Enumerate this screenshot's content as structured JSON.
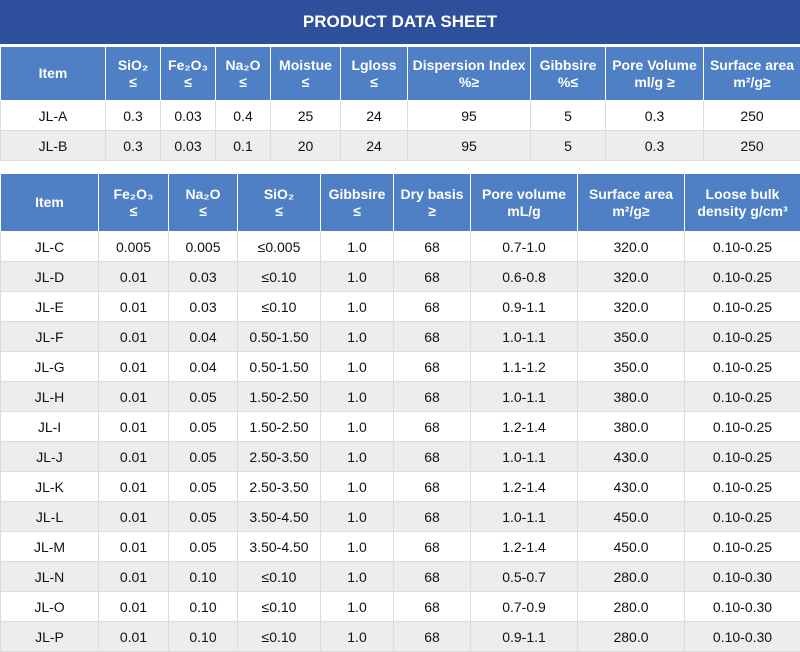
{
  "title": "PRODUCT DATA SHEET",
  "tables": [
    {
      "header": [
        [
          "Item"
        ],
        [
          "SiO₂",
          "≤"
        ],
        [
          "Fe₂O₃",
          "≤"
        ],
        [
          "Na₂O",
          "≤"
        ],
        [
          "Moistue",
          "≤"
        ],
        [
          "Lgloss",
          "≤"
        ],
        [
          "Dispersion Index",
          "%≥"
        ],
        [
          "Gibbsire",
          "%≤"
        ],
        [
          "Pore Volume",
          "ml/g ≥"
        ],
        [
          "Surface area",
          "m²/g≥"
        ]
      ],
      "rows": [
        [
          "JL-A",
          "0.3",
          "0.03",
          "0.4",
          "25",
          "24",
          "95",
          "5",
          "0.3",
          "250"
        ],
        [
          "JL-B",
          "0.3",
          "0.03",
          "0.1",
          "20",
          "24",
          "95",
          "5",
          "0.3",
          "250"
        ]
      ]
    },
    {
      "header": [
        [
          "Item"
        ],
        [
          "Fe₂O₃",
          "≤"
        ],
        [
          "Na₂O",
          "≤"
        ],
        [
          "SiO₂",
          "≤"
        ],
        [
          "Gibbsire",
          "≤"
        ],
        [
          "Dry basis",
          "≥"
        ],
        [
          "Pore volume",
          "mL/g"
        ],
        [
          "Surface area",
          "m²/g≥"
        ],
        [
          "Loose bulk",
          "density g/cm³"
        ]
      ],
      "rows": [
        [
          "JL-C",
          "0.005",
          "0.005",
          "≤0.005",
          "1.0",
          "68",
          "0.7-1.0",
          "320.0",
          "0.10-0.25"
        ],
        [
          "JL-D",
          "0.01",
          "0.03",
          "≤0.10",
          "1.0",
          "68",
          "0.6-0.8",
          "320.0",
          "0.10-0.25"
        ],
        [
          "JL-E",
          "0.01",
          "0.03",
          "≤0.10",
          "1.0",
          "68",
          "0.9-1.1",
          "320.0",
          "0.10-0.25"
        ],
        [
          "JL-F",
          "0.01",
          "0.04",
          "0.50-1.50",
          "1.0",
          "68",
          "1.0-1.1",
          "350.0",
          "0.10-0.25"
        ],
        [
          "JL-G",
          "0.01",
          "0.04",
          "0.50-1.50",
          "1.0",
          "68",
          "1.1-1.2",
          "350.0",
          "0.10-0.25"
        ],
        [
          "JL-H",
          "0.01",
          "0.05",
          "1.50-2.50",
          "1.0",
          "68",
          "1.0-1.1",
          "380.0",
          "0.10-0.25"
        ],
        [
          "JL-I",
          "0.01",
          "0.05",
          "1.50-2.50",
          "1.0",
          "68",
          "1.2-1.4",
          "380.0",
          "0.10-0.25"
        ],
        [
          "JL-J",
          "0.01",
          "0.05",
          "2.50-3.50",
          "1.0",
          "68",
          "1.0-1.1",
          "430.0",
          "0.10-0.25"
        ],
        [
          "JL-K",
          "0.01",
          "0.05",
          "2.50-3.50",
          "1.0",
          "68",
          "1.2-1.4",
          "430.0",
          "0.10-0.25"
        ],
        [
          "JL-L",
          "0.01",
          "0.05",
          "3.50-4.50",
          "1.0",
          "68",
          "1.0-1.1",
          "450.0",
          "0.10-0.25"
        ],
        [
          "JL-M",
          "0.01",
          "0.05",
          "3.50-4.50",
          "1.0",
          "68",
          "1.2-1.4",
          "450.0",
          "0.10-0.25"
        ],
        [
          "JL-N",
          "0.01",
          "0.10",
          "≤0.10",
          "1.0",
          "68",
          "0.5-0.7",
          "280.0",
          "0.10-0.30"
        ],
        [
          "JL-O",
          "0.01",
          "0.10",
          "≤0.10",
          "1.0",
          "68",
          "0.7-0.9",
          "280.0",
          "0.10-0.30"
        ],
        [
          "JL-P",
          "0.01",
          "0.10",
          "≤0.10",
          "1.0",
          "68",
          "0.9-1.1",
          "280.0",
          "0.10-0.30"
        ]
      ]
    }
  ]
}
